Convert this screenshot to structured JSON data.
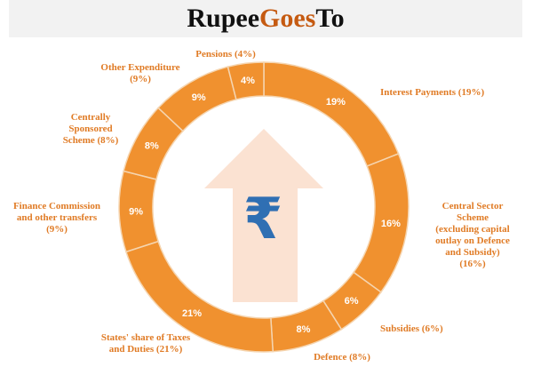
{
  "header": {
    "title_pre": "Rupee ",
    "title_accent": "Goes",
    "title_post": " To"
  },
  "colors": {
    "ring": "#f0912f",
    "divider": "#f5d5b0",
    "value_text": "#ffffff",
    "callout_text": "#e07b25",
    "arrow": "#fbe2d2",
    "rupee": "#2f6fb3"
  },
  "icons": {
    "center": "rupee-up-arrow-icon",
    "rupee_glyph": "₹"
  },
  "chart_data": {
    "type": "pie",
    "donut": true,
    "title": "Rupee Goes To",
    "categories": [
      "Interest Payments",
      "Central Sector Scheme (excluding capital outlay on Defence and Subsidy)",
      "Subsidies",
      "Defence",
      "States' share of Taxes and Duties",
      "Finance Commission and other transfers",
      "Centrally Sponsored Scheme",
      "Other Expenditure",
      "Pensions"
    ],
    "values": [
      19,
      16,
      6,
      8,
      21,
      9,
      8,
      9,
      4
    ],
    "value_labels": [
      "19%",
      "16%",
      "6%",
      "8%",
      "21%",
      "9%",
      "8%",
      "9%",
      "4%"
    ],
    "callouts": [
      "Interest Payments (19%)",
      "Central Sector\nScheme\n(excluding capital\noutlay on Defence\nand Subsidy)\n(16%)",
      "Subsidies (6%)",
      "Defence (8%)",
      "States' share of Taxes\nand Duties (21%)",
      "Finance Commission\nand other transfers\n(9%)",
      "Centrally\nSponsored\nScheme (8%)",
      "Other Expenditure\n(9%)",
      "Pensions (4%)"
    ]
  }
}
